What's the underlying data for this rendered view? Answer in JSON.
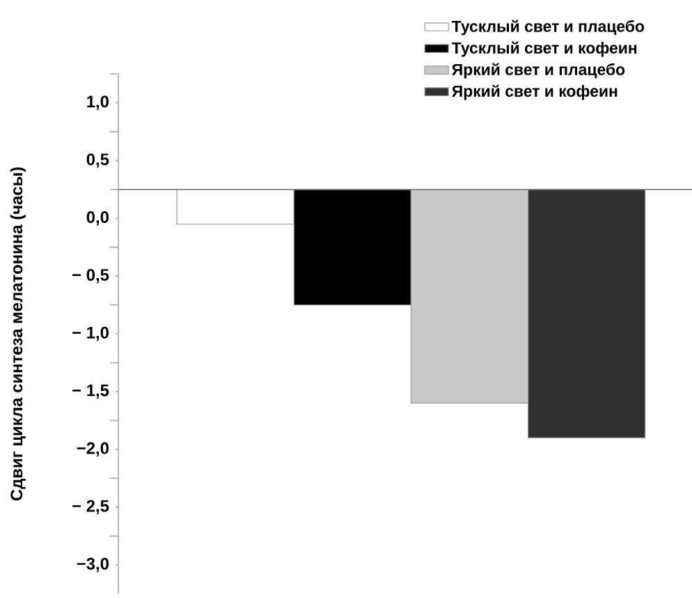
{
  "chart_data": {
    "type": "bar",
    "ylabel": "Сдвиг цикла синтеза мелатонина (часы)",
    "categories": [
      null
    ],
    "series": [
      {
        "name": "Тусклый свет и плацебо",
        "color": "#ffffff",
        "values": [
          -0.3
        ],
        "base": [
          0.25
        ]
      },
      {
        "name": "Тусклый свет и кофеин",
        "color": "#000000",
        "values": [
          -1.0
        ],
        "base": [
          0.25
        ]
      },
      {
        "name": "Яркий свет и плацебо",
        "color": "#c8c8c8",
        "values": [
          -1.85
        ],
        "base": [
          0.25
        ]
      },
      {
        "name": "Яркий свет и кофеин",
        "color": "#303030",
        "values": [
          -2.15
        ],
        "base": [
          0.25
        ]
      }
    ],
    "ylim": [
      -3.25,
      1.25
    ],
    "yticks": [
      {
        "value": 1.25,
        "label": null
      },
      {
        "value": 1.0,
        "label": "1,0"
      },
      {
        "value": 0.75,
        "label": null
      },
      {
        "value": 0.5,
        "label": "0,5"
      },
      {
        "value": 0.25,
        "label": null
      },
      {
        "value": 0.0,
        "label": "0,0"
      },
      {
        "value": -0.25,
        "label": null
      },
      {
        "value": -0.5,
        "label": "− 0,5"
      },
      {
        "value": -0.75,
        "label": null
      },
      {
        "value": -1.0,
        "label": "− 1,0"
      },
      {
        "value": -1.25,
        "label": null
      },
      {
        "value": -1.5,
        "label": "− 1,5"
      },
      {
        "value": -1.75,
        "label": null
      },
      {
        "value": -2.0,
        "label": "−2,0"
      },
      {
        "value": -2.25,
        "label": null
      },
      {
        "value": -2.5,
        "label": "− 2,5"
      },
      {
        "value": -2.75,
        "label": null
      },
      {
        "value": -3.0,
        "label": "−3,0"
      }
    ],
    "ref_lines": [
      {
        "axis": "y",
        "value": 0.25,
        "color": "#808080"
      }
    ],
    "legend": "top right"
  }
}
